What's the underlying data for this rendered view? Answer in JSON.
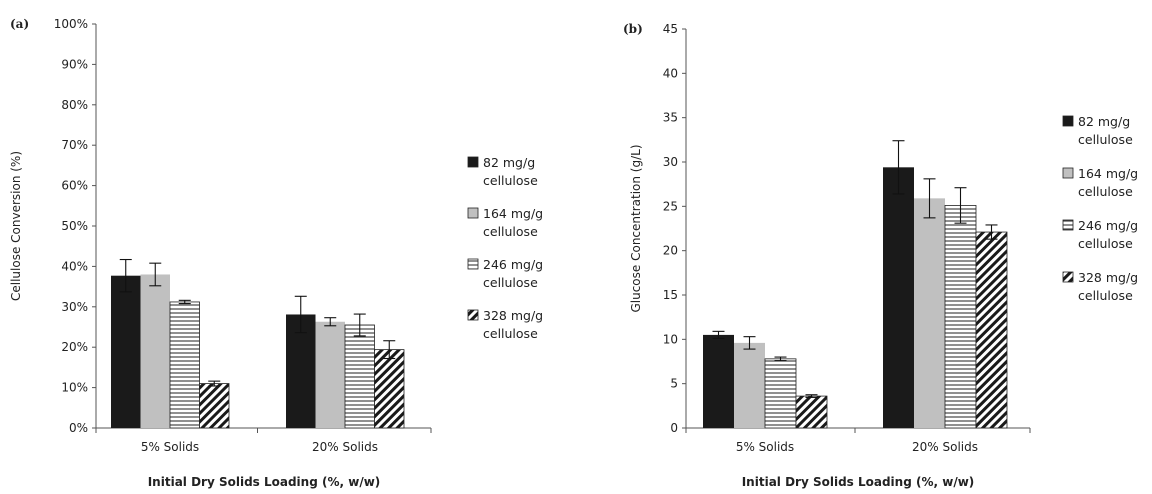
{
  "chart_data": [
    {
      "type": "bar",
      "panel_label": "(a)",
      "title": "",
      "xlabel": "Initial Dry Solids Loading (%, w/w)",
      "ylabel": "Cellulose Conversion (%)",
      "ylim": [
        0,
        100
      ],
      "yticks": [
        "0%",
        "10%",
        "20%",
        "30%",
        "40%",
        "50%",
        "60%",
        "70%",
        "80%",
        "90%",
        "100%"
      ],
      "categories": [
        "5% Solids",
        "20% Solids"
      ],
      "series": [
        {
          "name": "82 mg/g cellulose",
          "values": [
            37.7,
            28.1
          ],
          "errors": [
            4.0,
            4.5
          ]
        },
        {
          "name": "164 mg/g cellulose",
          "values": [
            38.0,
            26.3
          ],
          "errors": [
            2.8,
            1.0
          ]
        },
        {
          "name": "246 mg/g cellulose",
          "values": [
            31.2,
            25.5
          ],
          "errors": [
            0.4,
            2.7
          ]
        },
        {
          "name": "328 mg/g cellulose",
          "values": [
            11.0,
            19.4
          ],
          "errors": [
            0.6,
            2.2
          ]
        }
      ],
      "legend_position": "right",
      "grid": false
    },
    {
      "type": "bar",
      "panel_label": "(b)",
      "title": "",
      "xlabel": "Initial Dry Solids Loading (%, w/w)",
      "ylabel": "Glucose Concentration (g/L)",
      "ylim": [
        0,
        45
      ],
      "yticks": [
        "0",
        "5",
        "10",
        "15",
        "20",
        "25",
        "30",
        "35",
        "40",
        "45"
      ],
      "categories": [
        "5% Solids",
        "20% Solids"
      ],
      "series": [
        {
          "name": "82 mg/g cellulose",
          "values": [
            10.5,
            29.4
          ],
          "errors": [
            0.4,
            3.0
          ]
        },
        {
          "name": "164 mg/g cellulose",
          "values": [
            9.6,
            25.9
          ],
          "errors": [
            0.7,
            2.2
          ]
        },
        {
          "name": "246 mg/g cellulose",
          "values": [
            7.8,
            25.1
          ],
          "errors": [
            0.2,
            2.0
          ]
        },
        {
          "name": "328 mg/g cellulose",
          "values": [
            3.6,
            22.1
          ],
          "errors": [
            0.15,
            0.8
          ]
        }
      ],
      "legend_position": "right",
      "grid": false
    }
  ],
  "legend_items": [
    {
      "line1": "82 mg/g",
      "line2": "cellulose"
    },
    {
      "line1": "164 mg/g",
      "line2": "cellulose"
    },
    {
      "line1": "246 mg/g",
      "line2": "cellulose"
    },
    {
      "line1": "328 mg/g",
      "line2": "cellulose"
    }
  ],
  "series_styles": [
    "solid-black",
    "solid-gray",
    "horizontal-stripes",
    "diagonal-stripes"
  ],
  "colors": {
    "black": "#1a1a1a",
    "gray": "#c0c0c0",
    "axis": "#555555"
  }
}
